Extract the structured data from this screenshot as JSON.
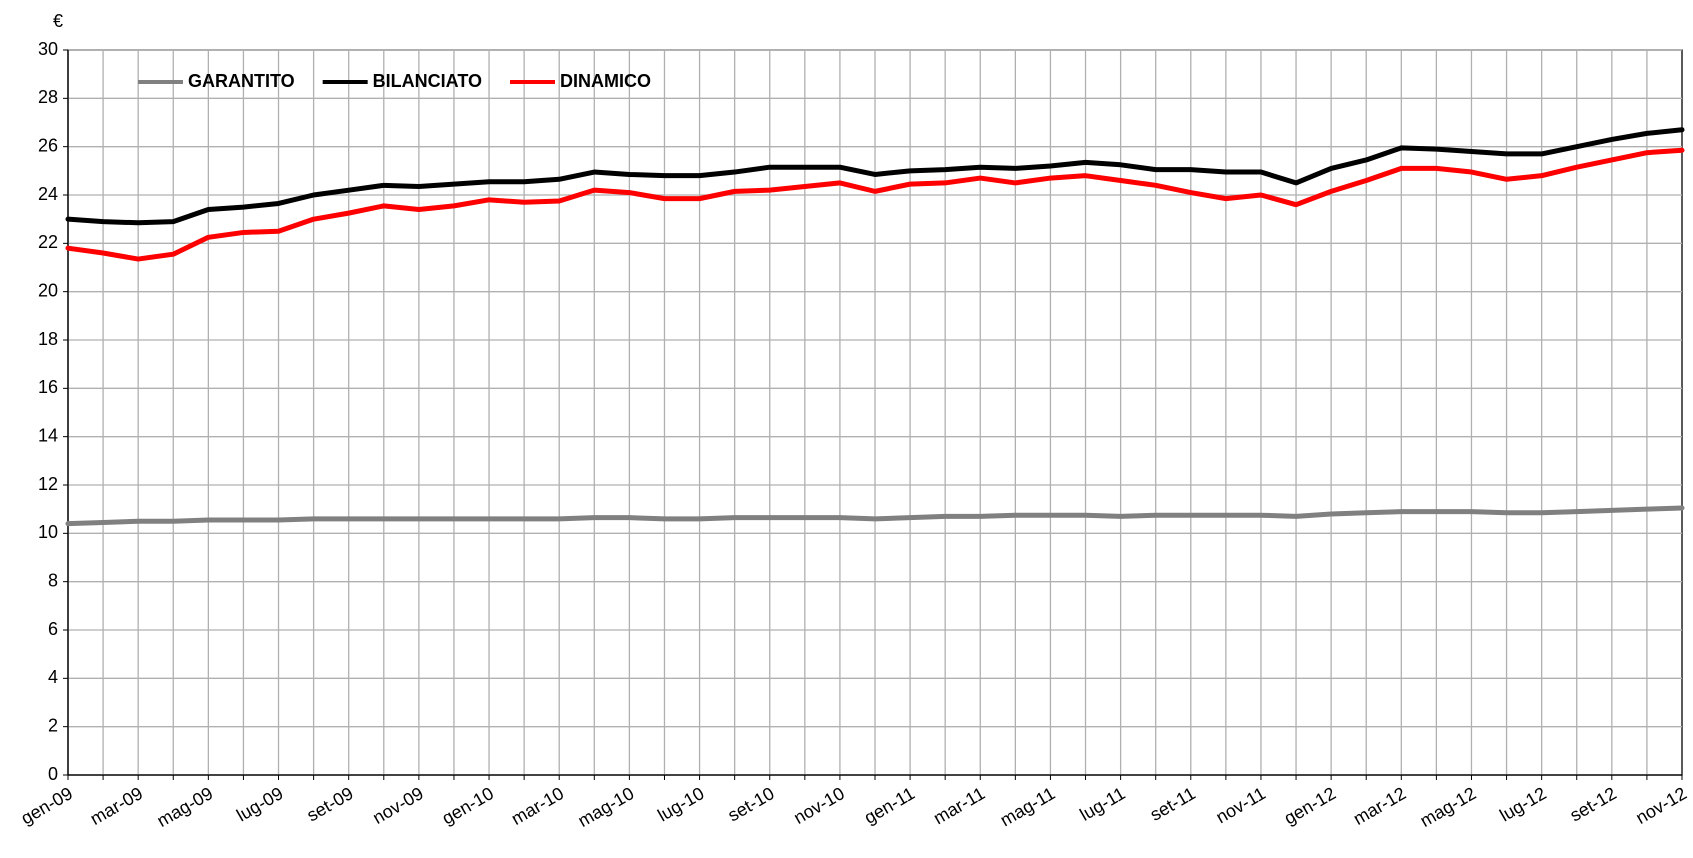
{
  "chart_data": {
    "type": "line",
    "y_label": "€",
    "categories": [
      "gen-09",
      null,
      "mar-09",
      null,
      "mag-09",
      null,
      "lug-09",
      null,
      "set-09",
      null,
      "nov-09",
      null,
      "gen-10",
      null,
      "mar-10",
      null,
      "mag-10",
      null,
      "lug-10",
      null,
      "set-10",
      null,
      "nov-10",
      null,
      "gen-11",
      null,
      "mar-11",
      null,
      "mag-11",
      null,
      "lug-11",
      null,
      "set-11",
      null,
      "nov-11",
      null,
      "gen-12",
      null,
      "mar-12",
      null,
      "mag-12",
      null,
      "lug-12",
      null,
      "set-12",
      null,
      "nov-12"
    ],
    "series": [
      {
        "name": "GARANTITO",
        "color": "#808080",
        "values": [
          10.4,
          10.45,
          10.5,
          10.5,
          10.55,
          10.55,
          10.55,
          10.6,
          10.6,
          10.6,
          10.6,
          10.6,
          10.6,
          10.6,
          10.6,
          10.65,
          10.65,
          10.6,
          10.6,
          10.65,
          10.65,
          10.65,
          10.65,
          10.6,
          10.65,
          10.7,
          10.7,
          10.75,
          10.75,
          10.75,
          10.7,
          10.75,
          10.75,
          10.75,
          10.75,
          10.7,
          10.8,
          10.85,
          10.9,
          10.9,
          10.9,
          10.85,
          10.85,
          10.9,
          10.95,
          11.0,
          11.05
        ]
      },
      {
        "name": "BILANCIATO",
        "color": "#000000",
        "values": [
          23.0,
          22.9,
          22.85,
          22.9,
          23.4,
          23.5,
          23.65,
          24.0,
          24.2,
          24.4,
          24.35,
          24.45,
          24.55,
          24.55,
          24.65,
          24.95,
          24.85,
          24.8,
          24.8,
          24.95,
          25.15,
          25.15,
          25.15,
          24.85,
          25.0,
          25.05,
          25.15,
          25.1,
          25.2,
          25.35,
          25.25,
          25.05,
          25.05,
          24.95,
          24.95,
          24.5,
          25.1,
          25.45,
          25.95,
          25.9,
          25.8,
          25.7,
          25.7,
          26.0,
          26.3,
          26.55,
          26.7
        ]
      },
      {
        "name": "DINAMICO",
        "color": "#ff0000",
        "values": [
          21.8,
          21.6,
          21.35,
          21.55,
          22.25,
          22.45,
          22.5,
          23.0,
          23.25,
          23.55,
          23.4,
          23.55,
          23.8,
          23.7,
          23.75,
          24.2,
          24.1,
          23.85,
          23.85,
          24.15,
          24.2,
          24.35,
          24.5,
          24.15,
          24.45,
          24.5,
          24.7,
          24.5,
          24.7,
          24.8,
          24.6,
          24.4,
          24.1,
          23.85,
          24.0,
          23.6,
          24.15,
          24.6,
          25.1,
          25.1,
          24.95,
          24.65,
          24.8,
          25.15,
          25.45,
          25.75,
          25.85
        ]
      }
    ],
    "ylim": [
      0,
      30
    ],
    "yticks": [
      0,
      2,
      4,
      6,
      8,
      10,
      12,
      14,
      16,
      18,
      20,
      22,
      24,
      26,
      28,
      30
    ],
    "grid": true,
    "legend": "top-left"
  }
}
